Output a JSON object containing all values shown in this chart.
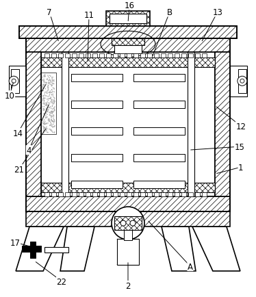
{
  "bg_color": "#ffffff",
  "line_color": "#000000",
  "figsize": [
    3.74,
    4.35
  ],
  "dpi": 100,
  "ox": 38,
  "oy": 55,
  "ow": 298,
  "oh": 255,
  "wall": 22
}
